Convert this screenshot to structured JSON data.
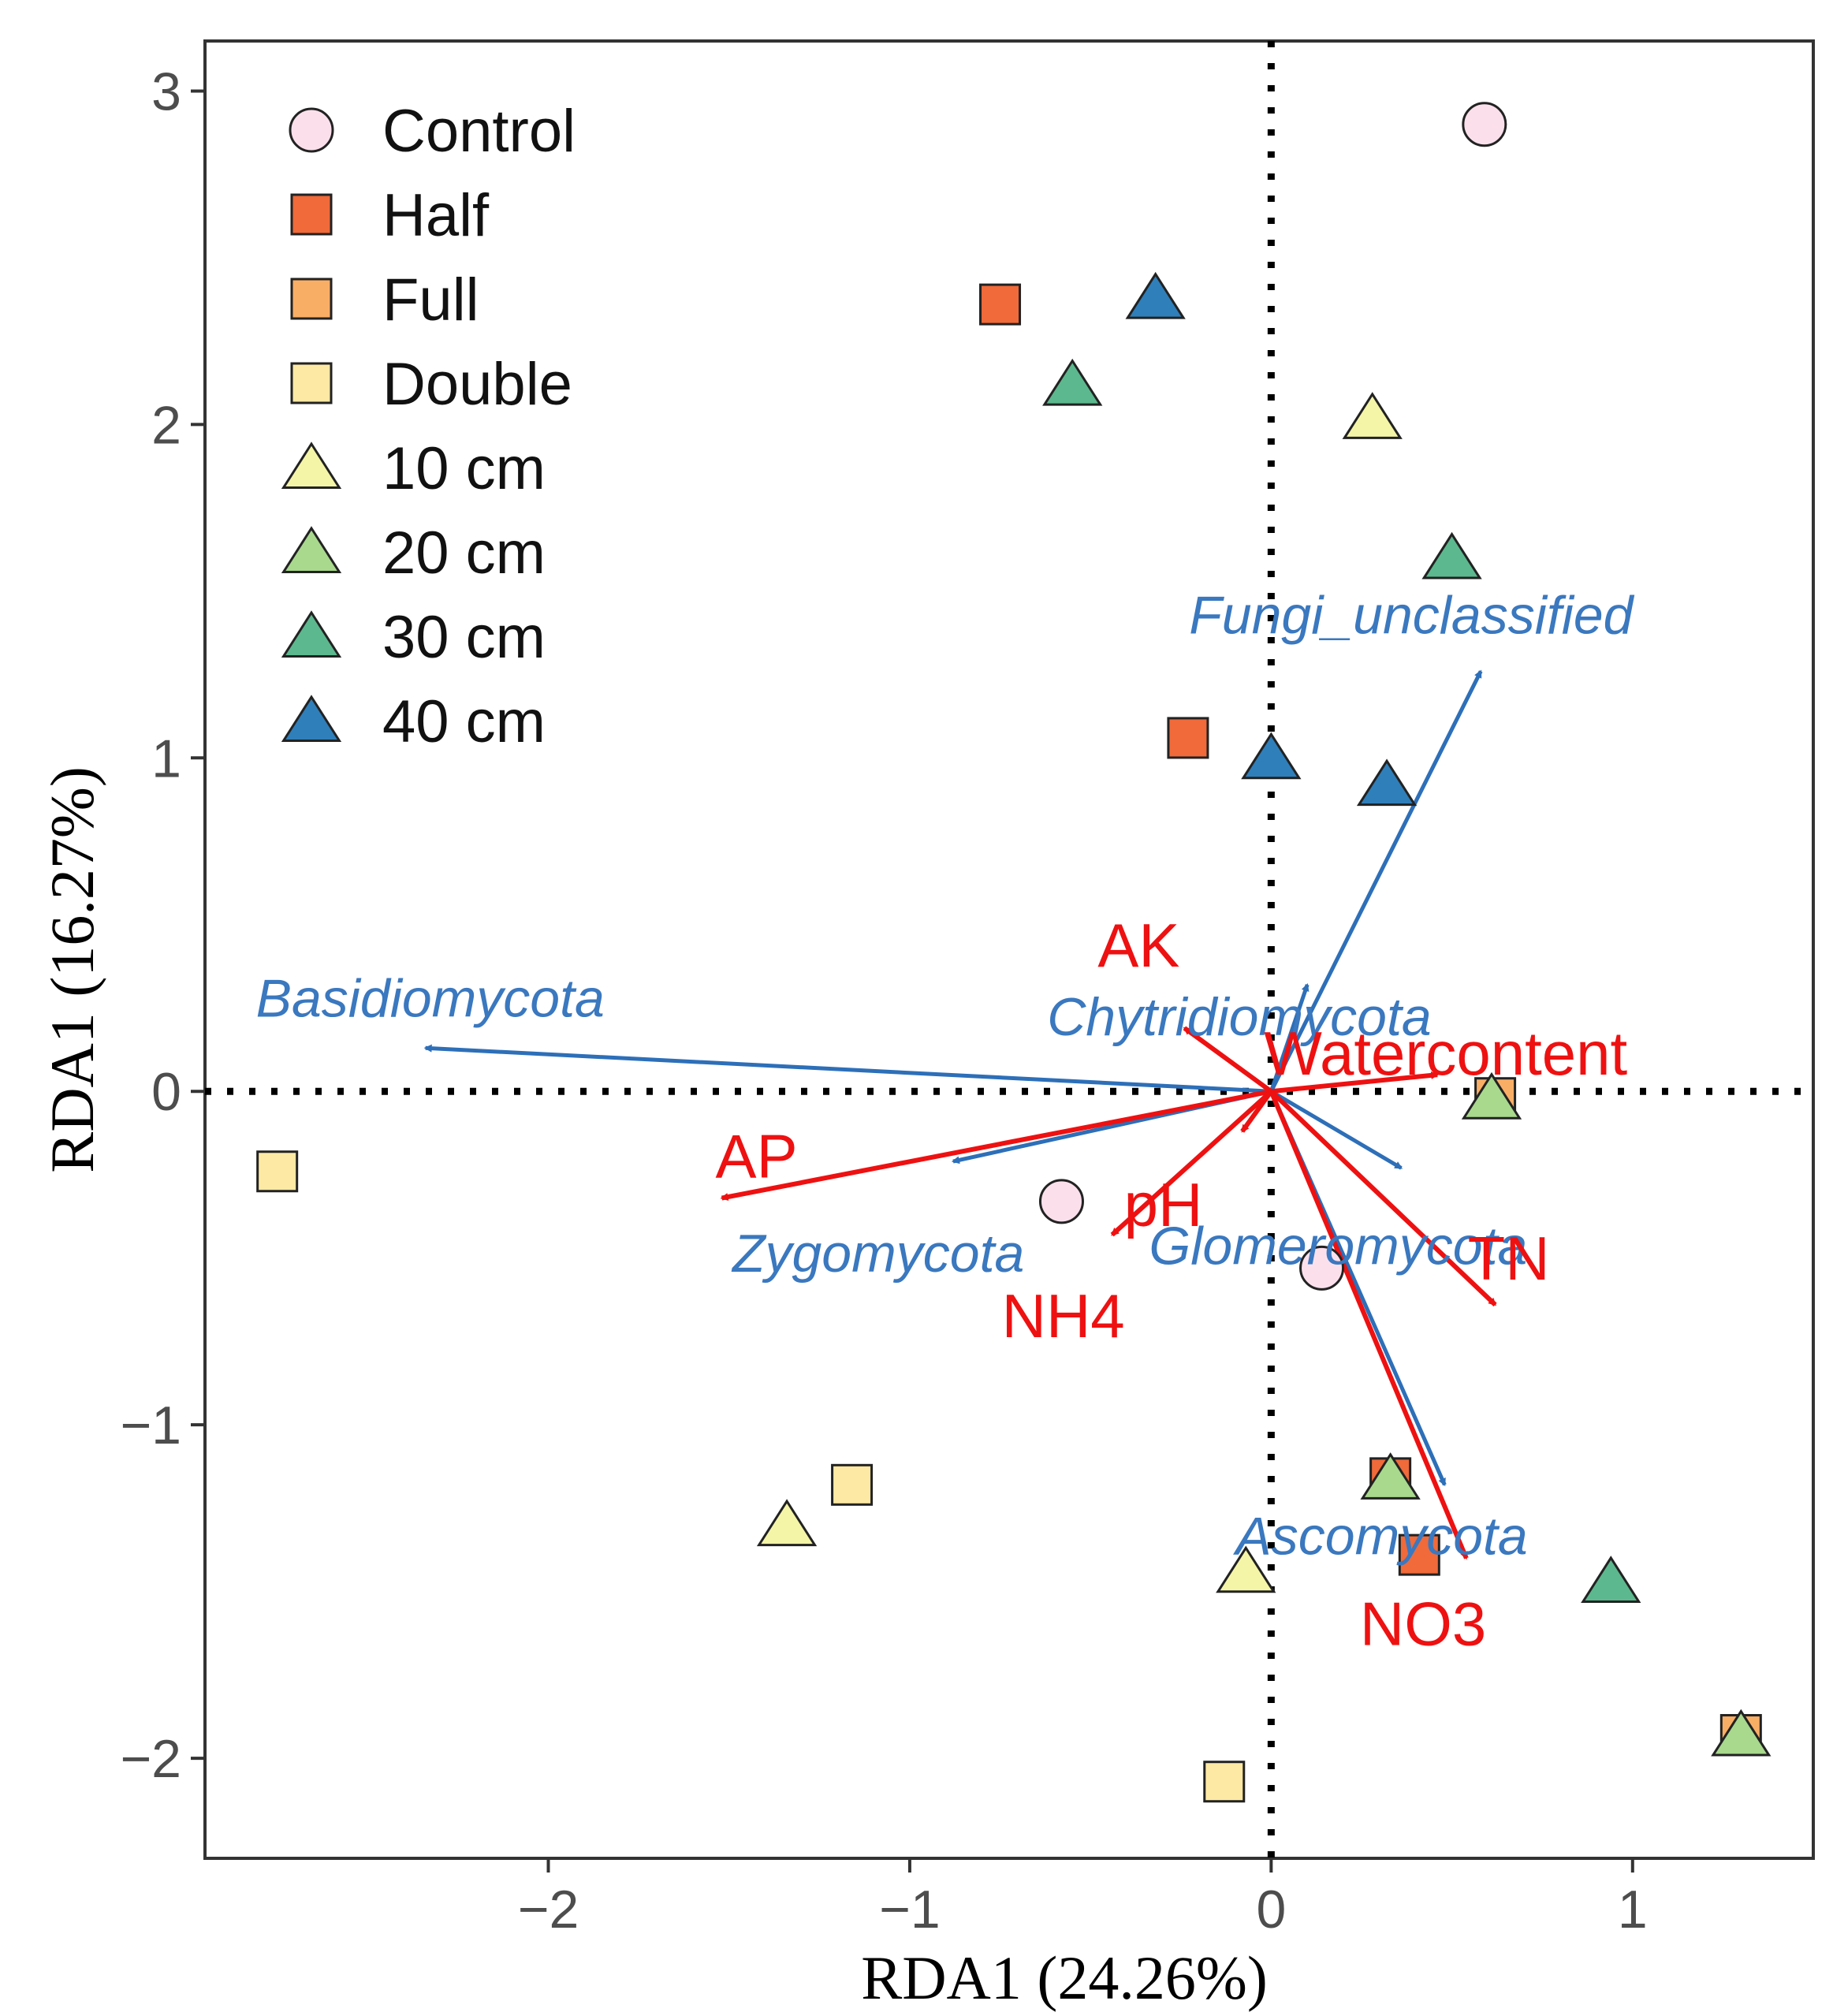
{
  "chart_data": {
    "type": "scatter",
    "subtype": "RDA biplot",
    "title": "",
    "xlabel": "RDA1 (24.26%)",
    "ylabel": "RDA1 (16.27%)",
    "xlim": [
      -2.95,
      1.5
    ],
    "ylim": [
      -2.3,
      3.15
    ],
    "x_ticks": [
      {
        "v": -2,
        "label": "−2"
      },
      {
        "v": -1,
        "label": "−1"
      },
      {
        "v": 0,
        "label": "0"
      },
      {
        "v": 1,
        "label": "1"
      }
    ],
    "y_ticks": [
      {
        "v": -2,
        "label": "−2"
      },
      {
        "v": -1,
        "label": "−1"
      },
      {
        "v": 0,
        "label": "0"
      },
      {
        "v": 1,
        "label": "1"
      },
      {
        "v": 2,
        "label": "2"
      },
      {
        "v": 3,
        "label": "3"
      }
    ],
    "grid": false,
    "reference_lines": [
      "x = 0 (dotted)",
      "y = 0 (dotted)"
    ],
    "legend_position": "top-left",
    "legend": [
      {
        "label": "Control",
        "shape": "circle",
        "color": "#fbe0ec"
      },
      {
        "label": "Half",
        "shape": "square",
        "color": "#f06a3a"
      },
      {
        "label": "Full",
        "shape": "square",
        "color": "#f9ae66"
      },
      {
        "label": "Double",
        "shape": "square",
        "color": "#fde9a3"
      },
      {
        "label": "10 cm",
        "shape": "triangle",
        "color": "#f4f5a6"
      },
      {
        "label": "20 cm",
        "shape": "triangle",
        "color": "#a8d98d"
      },
      {
        "label": "30 cm",
        "shape": "triangle",
        "color": "#5cb88e"
      },
      {
        "label": "40 cm",
        "shape": "triangle",
        "color": "#2f7fba"
      }
    ],
    "samples": [
      {
        "group": "Control",
        "x": 0.59,
        "y": 2.9
      },
      {
        "group": "Control",
        "x": -0.58,
        "y": -0.33
      },
      {
        "group": "Control",
        "x": 0.14,
        "y": -0.53
      },
      {
        "group": "Half",
        "x": -0.75,
        "y": 2.36
      },
      {
        "group": "Half",
        "x": -0.23,
        "y": 1.06
      },
      {
        "group": "Half",
        "x": 0.41,
        "y": -1.39
      },
      {
        "group": "Half",
        "x": 0.33,
        "y": -1.16
      },
      {
        "group": "Full",
        "x": 1.3,
        "y": -1.93
      },
      {
        "group": "Full",
        "x": 0.62,
        "y": -0.02
      },
      {
        "group": "Double",
        "x": -2.75,
        "y": -0.24
      },
      {
        "group": "Double",
        "x": -1.16,
        "y": -1.18
      },
      {
        "group": "Double",
        "x": -0.13,
        "y": -2.07
      },
      {
        "group": "10 cm",
        "x": 0.28,
        "y": 2.02
      },
      {
        "group": "10 cm",
        "x": -1.34,
        "y": -1.3
      },
      {
        "group": "10 cm",
        "x": -0.07,
        "y": -1.44
      },
      {
        "group": "20 cm",
        "x": 0.61,
        "y": -0.02
      },
      {
        "group": "20 cm",
        "x": 0.33,
        "y": -1.16
      },
      {
        "group": "20 cm",
        "x": 1.3,
        "y": -1.93
      },
      {
        "group": "30 cm",
        "x": -0.55,
        "y": 2.12
      },
      {
        "group": "30 cm",
        "x": 0.5,
        "y": 1.6
      },
      {
        "group": "30 cm",
        "x": 0.94,
        "y": -1.47
      },
      {
        "group": "40 cm",
        "x": -0.32,
        "y": 2.38
      },
      {
        "group": "40 cm",
        "x": 0.0,
        "y": 1.0
      },
      {
        "group": "40 cm",
        "x": 0.32,
        "y": 0.92
      }
    ],
    "environment_vectors": [
      {
        "label": "AK",
        "x": -0.24,
        "y": 0.19
      },
      {
        "label": "Watercontent",
        "x": 0.46,
        "y": 0.05
      },
      {
        "label": "AP",
        "x": -1.52,
        "y": -0.32
      },
      {
        "label": "pH",
        "x": -0.08,
        "y": -0.12
      },
      {
        "label": "NH4",
        "x": -0.44,
        "y": -0.43
      },
      {
        "label": "TN",
        "x": 0.62,
        "y": -0.64
      },
      {
        "label": "NO3",
        "x": 0.54,
        "y": -1.4
      }
    ],
    "taxa_vectors": [
      {
        "label": "Fungi_unclassified",
        "x": 0.58,
        "y": 1.26
      },
      {
        "label": "Chytridiomycota",
        "x": 0.1,
        "y": 0.32
      },
      {
        "label": "Basidiomycota",
        "x": -2.34,
        "y": 0.13
      },
      {
        "label": "Zygomycota",
        "x": -0.88,
        "y": -0.21
      },
      {
        "label": "Glomeromycota",
        "x": 0.36,
        "y": -0.23
      },
      {
        "label": "Ascomycota",
        "x": 0.48,
        "y": -1.18
      }
    ]
  }
}
